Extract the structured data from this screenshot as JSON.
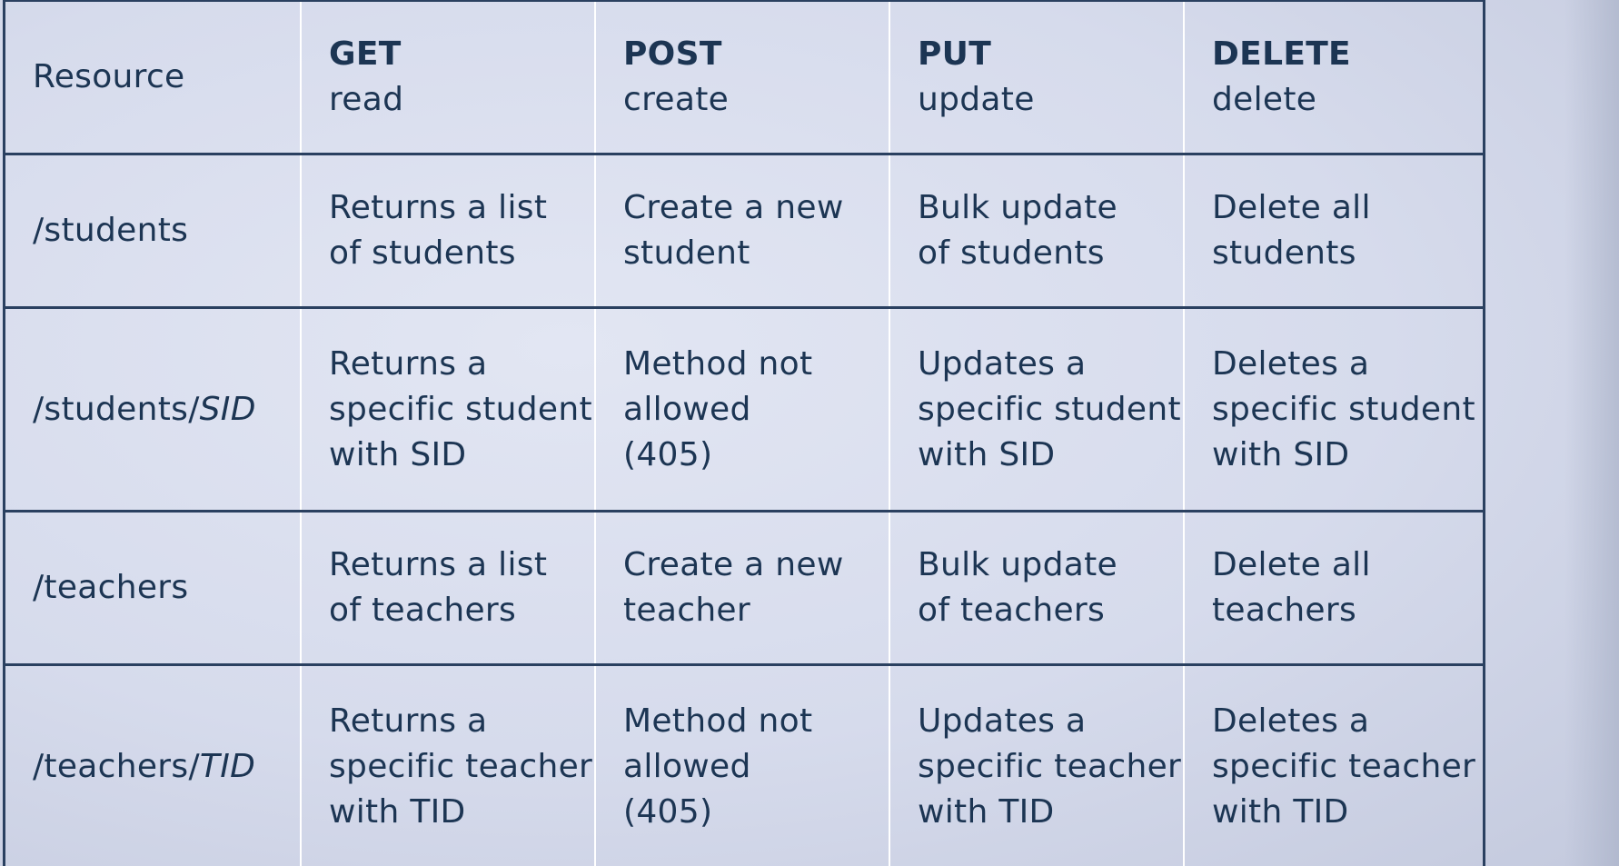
{
  "table": {
    "header": {
      "resource": "Resource",
      "methods": [
        {
          "name": "GET",
          "verb": "read"
        },
        {
          "name": "POST",
          "verb": "create"
        },
        {
          "name": "PUT",
          "verb": "update"
        },
        {
          "name": "DELETE",
          "verb": "delete"
        }
      ]
    },
    "rows": [
      {
        "resource_base": "/students",
        "resource_param": "",
        "get": "Returns a list\nof students",
        "post": "Create a new\nstudent",
        "put": "Bulk update\nof students",
        "delete": "Delete all\nstudents"
      },
      {
        "resource_base": "/students/",
        "resource_param": "SID",
        "get": "Returns a\nspecific student\nwith SID",
        "post": "Method not\nallowed\n(405)",
        "put": "Updates a\nspecific student\nwith SID",
        "delete": "Deletes a\nspecific student\nwith SID"
      },
      {
        "resource_base": "/teachers",
        "resource_param": "",
        "get": "Returns a list\nof teachers",
        "post": "Create a new\nteacher",
        "put": "Bulk update\nof teachers",
        "delete": "Delete all\nteachers"
      },
      {
        "resource_base": "/teachers/",
        "resource_param": "TID",
        "get": "Returns a\nspecific teacher\nwith TID",
        "post": "Method not\nallowed\n(405)",
        "put": "Updates a\nspecific teacher\nwith TID",
        "delete": "Deletes a\nspecific teacher\nwith TID"
      }
    ]
  },
  "colors": {
    "text": "#1c3553",
    "background": "#d6dbec",
    "grid_line": "#ffffff",
    "row_separator": "#2a4060"
  }
}
